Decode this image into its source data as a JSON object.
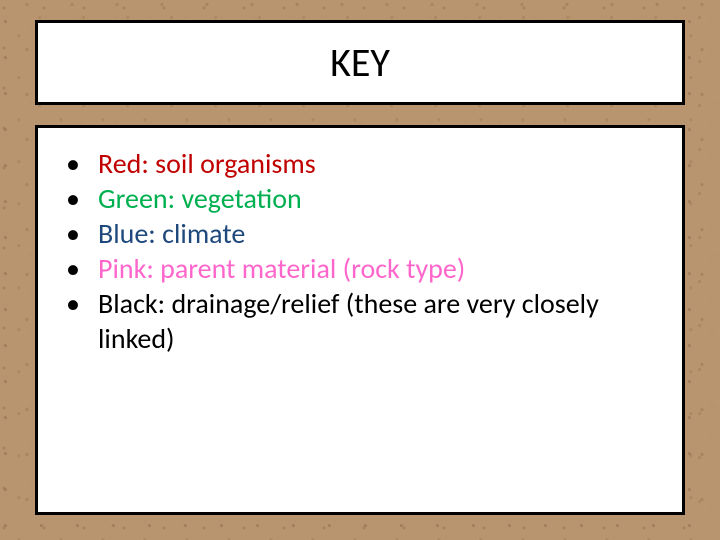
{
  "slide": {
    "title": "KEY",
    "background_color": "#b8946f",
    "box_background": "#ffffff",
    "box_border_color": "#000000",
    "title_fontsize": 40,
    "item_fontsize": 28,
    "items": [
      {
        "text": "Red: soil organisms",
        "color": "#c00000"
      },
      {
        "text": "Green: vegetation",
        "color": "#00b050"
      },
      {
        "text": "Blue: climate",
        "color": "#1f497d"
      },
      {
        "text": "Pink: parent material (rock type)",
        "color": "#ff66cc"
      },
      {
        "text": "Black: drainage/relief (these are very closely linked)",
        "color": "#000000"
      }
    ]
  }
}
